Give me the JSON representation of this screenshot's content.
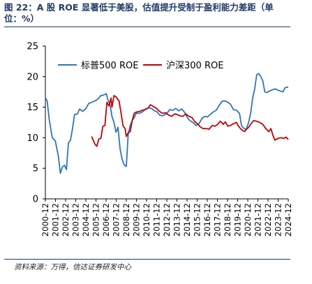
{
  "header": {
    "title": "图 22：A 股 ROE 显著低于美股，估值提升受制于盈利能力差距（单位：%）"
  },
  "footer": {
    "source": "资料来源：万得，信达证券研发中心"
  },
  "chart_data": {
    "type": "line",
    "ylim": [
      0,
      25
    ],
    "yticks": [
      0,
      5,
      10,
      15,
      20,
      25
    ],
    "xlim": [
      2000.92,
      2024.92
    ],
    "xticks": [
      "2000-12",
      "2001-12",
      "2002-12",
      "2003-12",
      "2004-12",
      "2005-12",
      "2006-12",
      "2007-12",
      "2008-12",
      "2009-12",
      "2010-12",
      "2011-12",
      "2012-12",
      "2013-12",
      "2014-12",
      "2015-12",
      "2016-12",
      "2017-12",
      "2018-12",
      "2019-12",
      "2020-12",
      "2021-12",
      "2022-12",
      "2023-12",
      "2024-12"
    ],
    "legend_position": "top",
    "grid": false,
    "series": [
      {
        "name": "标普500 ROE",
        "color": "#2e75b6",
        "points": [
          [
            2000.92,
            16.6
          ],
          [
            2001.1,
            16.0
          ],
          [
            2001.3,
            13.0
          ],
          [
            2001.6,
            10.0
          ],
          [
            2001.9,
            9.5
          ],
          [
            2002.2,
            7.0
          ],
          [
            2002.4,
            4.2
          ],
          [
            2002.6,
            5.2
          ],
          [
            2002.8,
            5.5
          ],
          [
            2003.0,
            4.8
          ],
          [
            2003.2,
            9.2
          ],
          [
            2003.4,
            9.6
          ],
          [
            2003.6,
            11.5
          ],
          [
            2003.8,
            13.8
          ],
          [
            2004.1,
            13.9
          ],
          [
            2004.3,
            14.7
          ],
          [
            2004.6,
            14.3
          ],
          [
            2004.9,
            14.7
          ],
          [
            2005.2,
            15.6
          ],
          [
            2005.5,
            15.8
          ],
          [
            2005.8,
            16.0
          ],
          [
            2006.1,
            16.3
          ],
          [
            2006.4,
            16.9
          ],
          [
            2006.7,
            17.0
          ],
          [
            2006.95,
            17.2
          ],
          [
            2007.1,
            16.2
          ],
          [
            2007.3,
            15.5
          ],
          [
            2007.5,
            13.5
          ],
          [
            2007.7,
            12.5
          ],
          [
            2007.9,
            10.9
          ],
          [
            2008.1,
            11.7
          ],
          [
            2008.3,
            8.2
          ],
          [
            2008.5,
            6.5
          ],
          [
            2008.7,
            5.6
          ],
          [
            2008.92,
            5.3
          ],
          [
            2009.1,
            10.5
          ],
          [
            2009.3,
            12.0
          ],
          [
            2009.5,
            12.8
          ],
          [
            2009.7,
            13.3
          ],
          [
            2009.9,
            14.0
          ],
          [
            2010.2,
            14.0
          ],
          [
            2010.5,
            14.2
          ],
          [
            2010.8,
            14.7
          ],
          [
            2011.1,
            14.9
          ],
          [
            2011.4,
            14.8
          ],
          [
            2011.7,
            14.4
          ],
          [
            2011.92,
            14.3
          ],
          [
            2012.2,
            13.7
          ],
          [
            2012.5,
            13.6
          ],
          [
            2012.9,
            13.9
          ],
          [
            2013.2,
            14.6
          ],
          [
            2013.5,
            14.5
          ],
          [
            2013.8,
            14.8
          ],
          [
            2014.1,
            14.4
          ],
          [
            2014.4,
            14.7
          ],
          [
            2014.7,
            14.1
          ],
          [
            2014.95,
            13.3
          ],
          [
            2015.2,
            12.8
          ],
          [
            2015.5,
            12.5
          ],
          [
            2015.8,
            12.0
          ],
          [
            2016.1,
            12.3
          ],
          [
            2016.4,
            13.2
          ],
          [
            2016.7,
            13.5
          ],
          [
            2016.95,
            13.4
          ],
          [
            2017.2,
            13.8
          ],
          [
            2017.5,
            14.2
          ],
          [
            2017.8,
            14.5
          ],
          [
            2018.1,
            15.3
          ],
          [
            2018.4,
            16.0
          ],
          [
            2018.7,
            16.0
          ],
          [
            2018.95,
            15.8
          ],
          [
            2019.2,
            15.5
          ],
          [
            2019.5,
            14.6
          ],
          [
            2019.8,
            14.5
          ],
          [
            2020.1,
            14.0
          ],
          [
            2020.3,
            12.0
          ],
          [
            2020.5,
            11.6
          ],
          [
            2020.75,
            11.3
          ],
          [
            2021.0,
            12.5
          ],
          [
            2021.2,
            14.0
          ],
          [
            2021.4,
            16.5
          ],
          [
            2021.6,
            18.0
          ],
          [
            2021.8,
            20.3
          ],
          [
            2022.0,
            20.5
          ],
          [
            2022.2,
            20.0
          ],
          [
            2022.4,
            19.3
          ],
          [
            2022.6,
            17.5
          ],
          [
            2022.8,
            17.4
          ],
          [
            2023.0,
            17.6
          ],
          [
            2023.3,
            17.8
          ],
          [
            2023.6,
            18.0
          ],
          [
            2023.9,
            17.8
          ],
          [
            2024.2,
            17.6
          ],
          [
            2024.4,
            17.5
          ],
          [
            2024.6,
            18.2
          ],
          [
            2024.92,
            18.3
          ]
        ]
      },
      {
        "name": "沪深300 ROE",
        "color": "#c00000",
        "points": [
          [
            2005.5,
            10.2
          ],
          [
            2005.8,
            9.0
          ],
          [
            2006.0,
            8.6
          ],
          [
            2006.2,
            9.8
          ],
          [
            2006.4,
            9.9
          ],
          [
            2006.6,
            11.9
          ],
          [
            2006.8,
            12.0
          ],
          [
            2007.0,
            15.8
          ],
          [
            2007.2,
            15.2
          ],
          [
            2007.4,
            16.5
          ],
          [
            2007.5,
            15.0
          ],
          [
            2007.7,
            16.9
          ],
          [
            2007.9,
            16.7
          ],
          [
            2008.2,
            16.0
          ],
          [
            2008.4,
            14.0
          ],
          [
            2008.6,
            11.9
          ],
          [
            2008.8,
            11.5
          ],
          [
            2008.92,
            10.2
          ],
          [
            2009.1,
            10.8
          ],
          [
            2009.3,
            11.0
          ],
          [
            2009.5,
            12.8
          ],
          [
            2009.7,
            14.0
          ],
          [
            2009.9,
            14.2
          ],
          [
            2010.2,
            14.3
          ],
          [
            2010.5,
            14.5
          ],
          [
            2010.8,
            14.6
          ],
          [
            2011.1,
            14.9
          ],
          [
            2011.3,
            15.4
          ],
          [
            2011.6,
            15.1
          ],
          [
            2011.92,
            14.8
          ],
          [
            2012.2,
            14.3
          ],
          [
            2012.5,
            14.0
          ],
          [
            2012.8,
            14.1
          ],
          [
            2013.1,
            13.7
          ],
          [
            2013.4,
            13.5
          ],
          [
            2013.7,
            13.9
          ],
          [
            2013.95,
            13.8
          ],
          [
            2014.2,
            13.6
          ],
          [
            2014.5,
            13.5
          ],
          [
            2014.8,
            13.9
          ],
          [
            2015.1,
            13.5
          ],
          [
            2015.4,
            13.3
          ],
          [
            2015.7,
            12.6
          ],
          [
            2015.95,
            12.3
          ],
          [
            2016.2,
            11.8
          ],
          [
            2016.5,
            11.5
          ],
          [
            2016.8,
            11.5
          ],
          [
            2017.1,
            11.4
          ],
          [
            2017.4,
            12.0
          ],
          [
            2017.7,
            11.9
          ],
          [
            2017.95,
            12.2
          ],
          [
            2018.2,
            12.7
          ],
          [
            2018.5,
            12.2
          ],
          [
            2018.7,
            12.6
          ],
          [
            2018.95,
            11.9
          ],
          [
            2019.2,
            12.0
          ],
          [
            2019.5,
            12.3
          ],
          [
            2019.8,
            12.5
          ],
          [
            2020.0,
            11.9
          ],
          [
            2020.2,
            11.5
          ],
          [
            2020.4,
            11.2
          ],
          [
            2020.6,
            11.0
          ],
          [
            2020.8,
            11.4
          ],
          [
            2021.0,
            11.7
          ],
          [
            2021.2,
            12.2
          ],
          [
            2021.5,
            12.8
          ],
          [
            2021.8,
            12.7
          ],
          [
            2022.1,
            12.5
          ],
          [
            2022.4,
            12.2
          ],
          [
            2022.7,
            11.5
          ],
          [
            2023.0,
            11.0
          ],
          [
            2023.2,
            11.5
          ],
          [
            2023.4,
            10.4
          ],
          [
            2023.6,
            9.6
          ],
          [
            2023.9,
            9.9
          ],
          [
            2024.2,
            10.0
          ],
          [
            2024.5,
            9.9
          ],
          [
            2024.7,
            10.1
          ],
          [
            2024.92,
            9.7
          ]
        ]
      }
    ]
  }
}
